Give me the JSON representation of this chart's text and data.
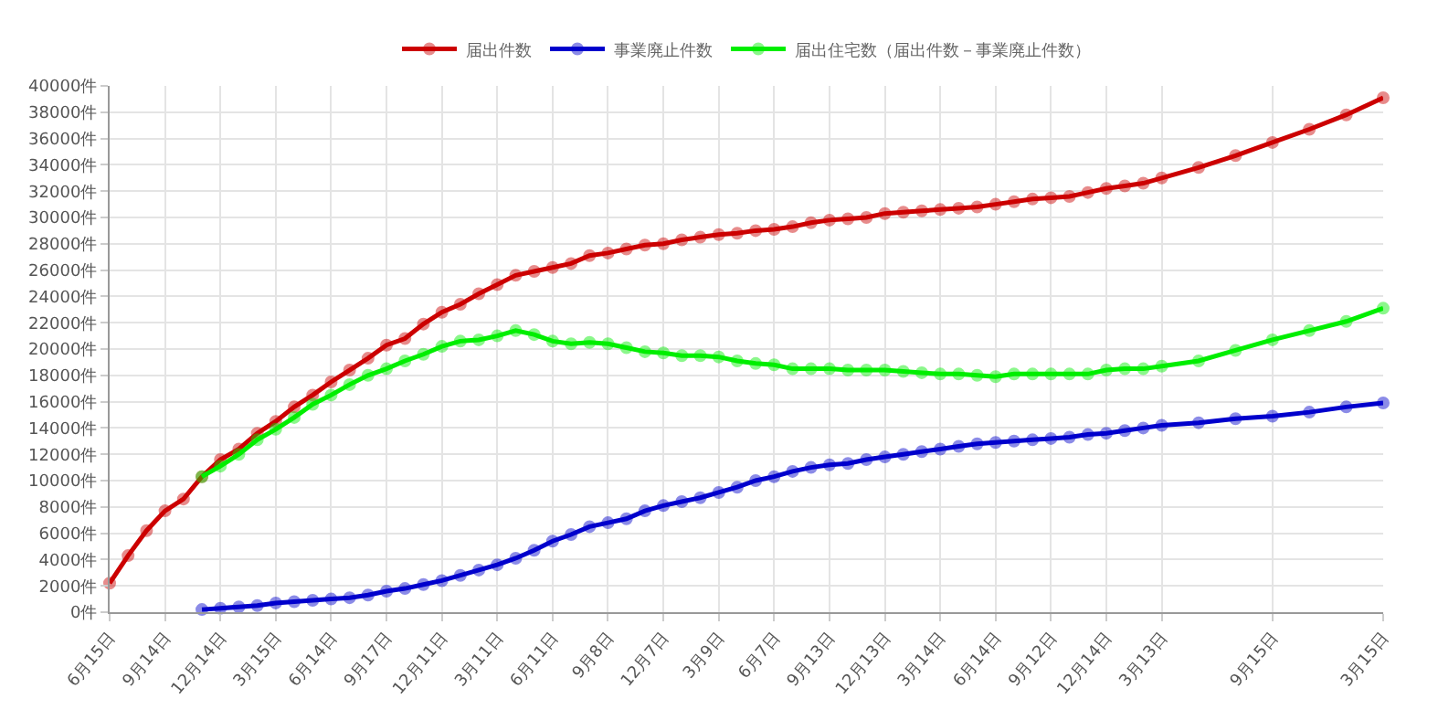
{
  "chart_data": {
    "type": "line",
    "categories": [
      "6月15日",
      null,
      null,
      "9月14日",
      null,
      null,
      "12月14日",
      null,
      null,
      "3月15日",
      null,
      null,
      "6月14日",
      null,
      null,
      "9月17日",
      null,
      null,
      "12月11日",
      null,
      null,
      "3月11日",
      null,
      null,
      "6月11日",
      null,
      null,
      "9月8日",
      null,
      null,
      "12月7日",
      null,
      null,
      "3月9日",
      null,
      null,
      "6月7日",
      null,
      null,
      "9月13日",
      null,
      null,
      "12月13日",
      null,
      null,
      "3月14日",
      null,
      null,
      "6月14日",
      null,
      null,
      "9月12日",
      null,
      null,
      "12月14日",
      null,
      null,
      "3月13日",
      null,
      null,
      null,
      null,
      null,
      "9月15日",
      null,
      null,
      null,
      null,
      null,
      "3月15日"
    ],
    "ylim": [
      0,
      40000
    ],
    "yticks": [
      {
        "value": 0,
        "label": "0件"
      },
      {
        "value": 2000,
        "label": "2000件"
      },
      {
        "value": 4000,
        "label": "4000件"
      },
      {
        "value": 6000,
        "label": "6000件"
      },
      {
        "value": 8000,
        "label": "8000件"
      },
      {
        "value": 10000,
        "label": "10000件"
      },
      {
        "value": 12000,
        "label": "12000件"
      },
      {
        "value": 14000,
        "label": "14000件"
      },
      {
        "value": 16000,
        "label": "16000件"
      },
      {
        "value": 18000,
        "label": "18000件"
      },
      {
        "value": 20000,
        "label": "20000件"
      },
      {
        "value": 22000,
        "label": "22000件"
      },
      {
        "value": 24000,
        "label": "24000件"
      },
      {
        "value": 26000,
        "label": "26000件"
      },
      {
        "value": 28000,
        "label": "28000件"
      },
      {
        "value": 30000,
        "label": "30000件"
      },
      {
        "value": 32000,
        "label": "32000件"
      },
      {
        "value": 34000,
        "label": "34000件"
      },
      {
        "value": 36000,
        "label": "36000件"
      },
      {
        "value": 38000,
        "label": "38000件"
      },
      {
        "value": 40000,
        "label": "40000件"
      }
    ],
    "grid": true,
    "legend": "top",
    "marker": "circle",
    "line_style": "solid",
    "series": [
      {
        "name": "届出件数",
        "color": "#cc0000",
        "values": [
          2200,
          4300,
          6200,
          7700,
          8600,
          10300,
          11600,
          12400,
          13600,
          14500,
          15600,
          16500,
          17500,
          18400,
          19300,
          20300,
          20800,
          21900,
          22800,
          23400,
          24200,
          24900,
          25600,
          25900,
          26200,
          26500,
          27100,
          27300,
          27600,
          27900,
          28000,
          28300,
          28500,
          28700,
          28800,
          29000,
          29100,
          29300,
          29600,
          29800,
          29900,
          30000,
          30300,
          30400,
          30500,
          30600,
          30700,
          30800,
          31000,
          31200,
          31400,
          31500,
          31600,
          31900,
          32200,
          32400,
          32600,
          33000,
          null,
          33800,
          null,
          34700,
          null,
          35700,
          null,
          36700,
          null,
          37800,
          null,
          39100
        ]
      },
      {
        "name": "事業廃止件数",
        "color": "#0000cc",
        "values": [
          null,
          null,
          null,
          null,
          null,
          200,
          300,
          400,
          500,
          700,
          800,
          900,
          1000,
          1100,
          1300,
          1600,
          1800,
          2100,
          2400,
          2800,
          3200,
          3600,
          4100,
          4700,
          5400,
          5900,
          6500,
          6800,
          7100,
          7700,
          8100,
          8400,
          8700,
          9100,
          9500,
          10000,
          10300,
          10700,
          11000,
          11200,
          11300,
          11600,
          11800,
          12000,
          12200,
          12400,
          12600,
          12800,
          12900,
          13000,
          13100,
          13200,
          13300,
          13500,
          13600,
          13800,
          14000,
          14200,
          null,
          14400,
          null,
          14700,
          null,
          14900,
          null,
          15200,
          null,
          15600,
          null,
          15900
        ]
      },
      {
        "name": "届出住宅数（届出件数－事業廃止件数）",
        "color": "#00ee00",
        "values": [
          null,
          null,
          null,
          null,
          null,
          10300,
          11100,
          12000,
          13100,
          13900,
          14800,
          15800,
          16500,
          17300,
          18000,
          18500,
          19100,
          19600,
          20200,
          20600,
          20700,
          21000,
          21400,
          21100,
          20600,
          20400,
          20500,
          20400,
          20100,
          19800,
          19700,
          19500,
          19500,
          19400,
          19100,
          18900,
          18800,
          18500,
          18500,
          18500,
          18400,
          18400,
          18400,
          18300,
          18200,
          18100,
          18100,
          18000,
          17900,
          18100,
          18100,
          18100,
          18100,
          18100,
          18400,
          18500,
          18500,
          18700,
          null,
          19100,
          null,
          19900,
          null,
          20700,
          null,
          21400,
          null,
          22100,
          null,
          23100
        ]
      }
    ]
  }
}
